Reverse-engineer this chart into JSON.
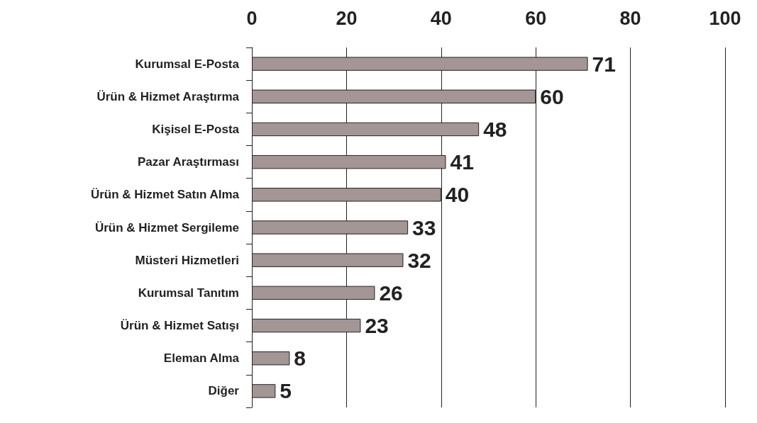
{
  "chart_data": {
    "type": "bar",
    "orientation": "horizontal",
    "categories": [
      "Kurumsal E-Posta",
      "Ürün & Hizmet Araştırma",
      "Kişisel E-Posta",
      "Pazar Araştırması",
      "Ürün & Hizmet Satın Alma",
      "Ürün & Hizmet Sergileme",
      "Müsteri Hizmetleri",
      "Kurumsal Tanıtım",
      "Ürün & Hizmet Satışı",
      "Eleman Alma",
      "Diğer"
    ],
    "values": [
      71,
      60,
      48,
      41,
      40,
      33,
      32,
      26,
      23,
      8,
      5
    ],
    "color": "#a39694",
    "xlim": [
      0,
      100
    ],
    "xticks": [
      0,
      20,
      40,
      60,
      80,
      100
    ],
    "grid": "x",
    "data_labels": true
  }
}
